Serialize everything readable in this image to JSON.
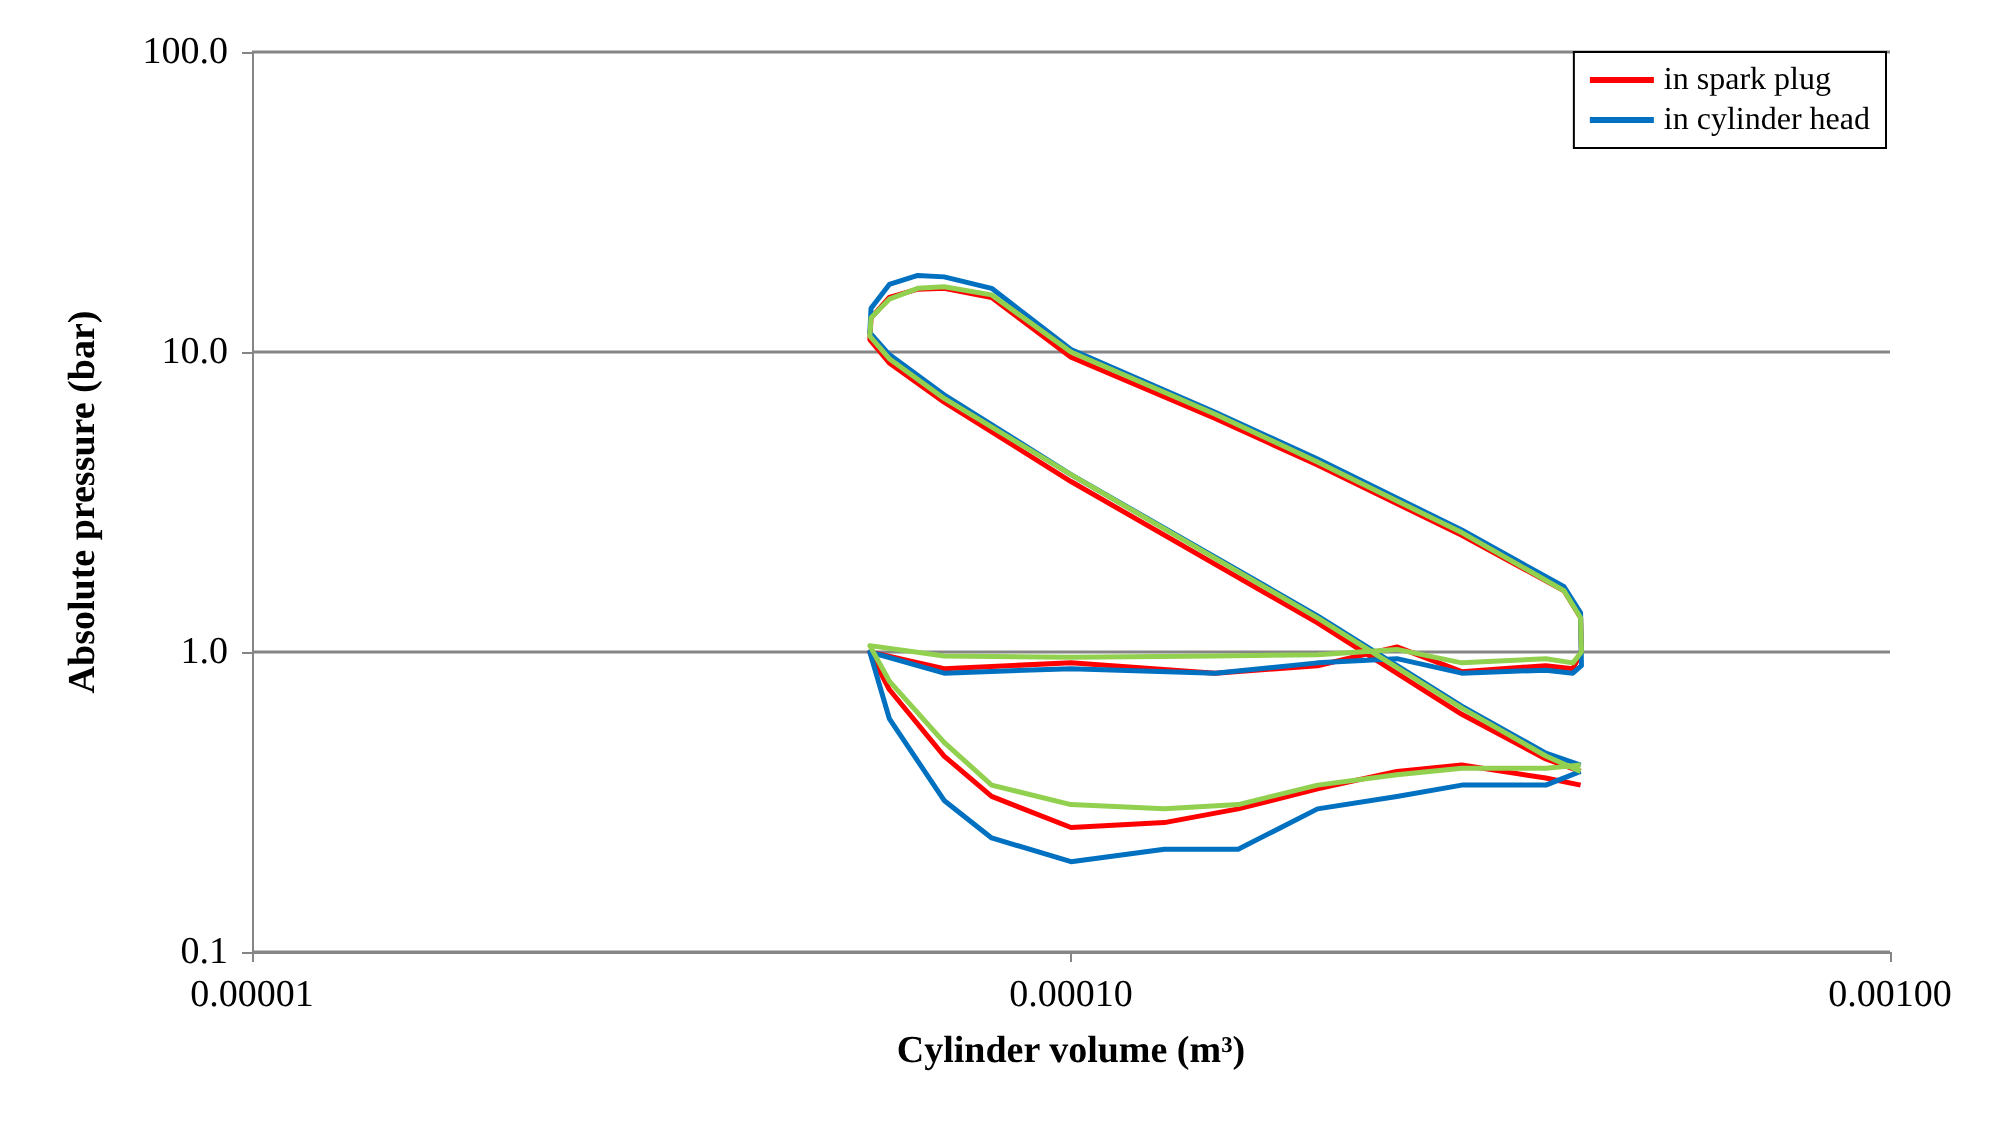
{
  "chart_data": {
    "type": "line",
    "xlabel": "Cylinder volume (m³)",
    "ylabel": "Absolute pressure (bar)",
    "log": "xy",
    "grid": "y",
    "legend": "top right",
    "marker": "none",
    "line_style": "solid",
    "xlim": [
      1e-05,
      0.001
    ],
    "ylim": [
      0.1,
      100
    ],
    "xticks": [
      {
        "value": 1e-05,
        "label": "0.00001"
      },
      {
        "value": 0.0001,
        "label": "0.00010"
      },
      {
        "value": 0.001,
        "label": "0.00100"
      }
    ],
    "yticks": [
      {
        "value": 0.1,
        "label": "0.1"
      },
      {
        "value": 1,
        "label": "1.0"
      },
      {
        "value": 10,
        "label": "10.0"
      },
      {
        "value": 100,
        "label": "100.0"
      }
    ],
    "series": [
      {
        "name": "in spark plug",
        "color": "#ff0000",
        "x": [
          0.000419,
          0.00038,
          0.0003,
          0.0002,
          0.0001,
          7e-05,
          6e-05,
          5.68e-05,
          5.7e-05,
          6e-05,
          6.5e-05,
          7e-05,
          8e-05,
          0.0001,
          0.00015,
          0.0002,
          0.0003,
          0.0004,
          0.000419,
          0.00042,
          0.00041,
          0.00038,
          0.0003,
          0.00025,
          0.0002,
          0.00015,
          0.0001,
          7e-05,
          5.68e-05,
          6e-05,
          7e-05,
          8e-05,
          0.0001,
          0.00013,
          0.00016,
          0.0002,
          0.00025,
          0.0003,
          0.00038,
          0.000419
        ],
        "values": [
          0.4,
          0.44,
          0.62,
          1.25,
          3.7,
          6.8,
          9.2,
          11,
          13,
          15.2,
          16.2,
          16.3,
          15.2,
          9.6,
          6,
          4.2,
          2.45,
          1.6,
          1.3,
          1,
          0.88,
          0.9,
          0.86,
          1.04,
          0.9,
          0.85,
          0.92,
          0.88,
          1,
          0.75,
          0.45,
          0.33,
          0.26,
          0.27,
          0.3,
          0.35,
          0.4,
          0.42,
          0.38,
          0.36
        ]
      },
      {
        "name": "in cylinder head",
        "color": "#0070c0",
        "x": [
          0.000419,
          0.00038,
          0.0003,
          0.0002,
          0.0001,
          7e-05,
          6e-05,
          5.68e-05,
          5.7e-05,
          6e-05,
          6.5e-05,
          7e-05,
          8e-05,
          0.0001,
          0.00015,
          0.0002,
          0.0003,
          0.0004,
          0.000419,
          0.00042,
          0.00041,
          0.00038,
          0.0003,
          0.00025,
          0.0002,
          0.00015,
          0.0001,
          7e-05,
          5.68e-05,
          6e-05,
          7e-05,
          8e-05,
          0.0001,
          0.00013,
          0.00016,
          0.0002,
          0.00025,
          0.0003,
          0.00038,
          0.000419
        ],
        "values": [
          0.42,
          0.46,
          0.66,
          1.32,
          3.9,
          7.2,
          9.8,
          11.6,
          14,
          16.8,
          18,
          17.8,
          16.3,
          10.2,
          6.3,
          4.4,
          2.55,
          1.65,
          1.35,
          0.9,
          0.85,
          0.87,
          0.85,
          0.95,
          0.92,
          0.85,
          0.88,
          0.85,
          1,
          0.6,
          0.32,
          0.24,
          0.2,
          0.22,
          0.22,
          0.3,
          0.33,
          0.36,
          0.36,
          0.4
        ]
      },
      {
        "color": "#92d050",
        "x": [
          0.000419,
          0.00038,
          0.0003,
          0.0002,
          0.0001,
          7e-05,
          6e-05,
          5.68e-05,
          5.7e-05,
          6e-05,
          6.5e-05,
          7e-05,
          8e-05,
          0.0001,
          0.00015,
          0.0002,
          0.0003,
          0.0004,
          0.000419,
          0.00042,
          0.00041,
          0.00038,
          0.0003,
          0.00025,
          0.0002,
          0.00015,
          0.0001,
          7e-05,
          5.68e-05,
          6e-05,
          7e-05,
          8e-05,
          0.0001,
          0.00013,
          0.00016,
          0.0002,
          0.00025,
          0.0003,
          0.00038,
          0.000419
        ],
        "values": [
          0.4,
          0.45,
          0.65,
          1.3,
          3.9,
          7,
          9.5,
          11.3,
          13,
          15,
          16.3,
          16.5,
          15.5,
          10,
          6.2,
          4.3,
          2.5,
          1.6,
          1.3,
          1,
          0.92,
          0.95,
          0.92,
          1.02,
          0.98,
          0.97,
          0.96,
          0.97,
          1.05,
          0.8,
          0.5,
          0.36,
          0.31,
          0.3,
          0.31,
          0.36,
          0.39,
          0.41,
          0.41,
          0.42
        ]
      }
    ]
  }
}
